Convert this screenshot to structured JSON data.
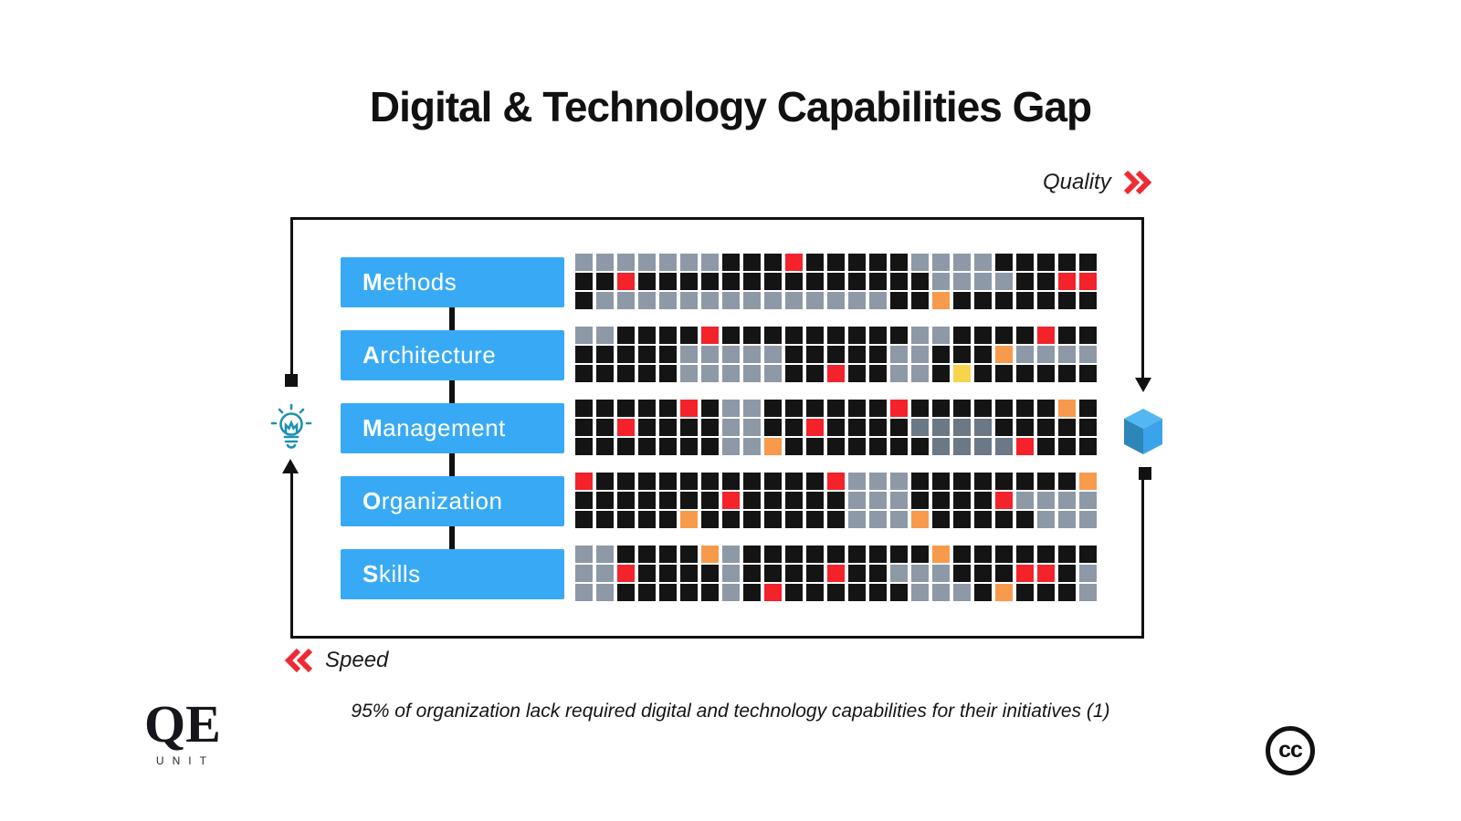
{
  "title": "Digital & Technology Capabilities Gap",
  "axes": {
    "quality": "Quality",
    "speed": "Speed"
  },
  "caption": "95% of organization lack required digital and technology capabilities for their initiatives (1)",
  "logo": {
    "qe": "QE",
    "unit": "UNIT"
  },
  "cc": "cc",
  "colors": {
    "box_blue": "#38aaf5",
    "accent_red": "#ee2b33",
    "bulb_teal": "#1d91ae",
    "cube_top": "#53b7f3",
    "cube_left": "#2c87b8",
    "cube_right": "#3ba3ea",
    "frame_black": "#111111"
  },
  "legendColors": {
    "K": "#141414",
    "G": "#8d99a7",
    "D": "#6b7886",
    "R": "#f3222b",
    "O": "#f79a4c",
    "Y": "#f8d44d"
  },
  "rows": [
    {
      "label": {
        "first": "M",
        "rest": "ethods"
      },
      "grid": [
        "GGGGGGGKKKRKKKKKGGGGKKKKK",
        "KKRKKKKKKKKKKKKKKGGGGKKRR",
        "KGGGGGGGGGGGGGGKKOKKKKKKK"
      ]
    },
    {
      "label": {
        "first": "A",
        "rest": "rchitecture"
      },
      "grid": [
        "GGKKKKRKKKKKKKKKGGKKKKRKK",
        "KKKKKGGGGGKKKKKGGKKKOGGGG",
        "KKKKKGGGGGKKRKKGGKYKKKKKK"
      ]
    },
    {
      "label": {
        "first": "M",
        "rest": "anagement"
      },
      "grid": [
        "KKKKKRKGGKKKKKKRKKKKKKKOK",
        "KKRKKKKGGKKRKKKKDDDDKKKKK",
        "KKKKKKKGGOKKKKKKKDDDDRKKK"
      ]
    },
    {
      "label": {
        "first": "O",
        "rest": "rganization"
      },
      "grid": [
        "RKKKKKKKKKKKRGGGKKKKKKKKO",
        "KKKKKKKRKKKKKGGGKKKKRGGGG",
        "KKKKKOKKKKKKKGGGOKKKKKGGG"
      ]
    },
    {
      "label": {
        "first": "S",
        "rest": "kills"
      },
      "grid": [
        "GGKKKKOGKKKKKKKKKOKKKKKKK",
        "GGRKKKKGKKKKRKKGGGKKKRRKG",
        "GGKKKKKGKRKKKKKKGGGKOKKKG"
      ]
    }
  ]
}
